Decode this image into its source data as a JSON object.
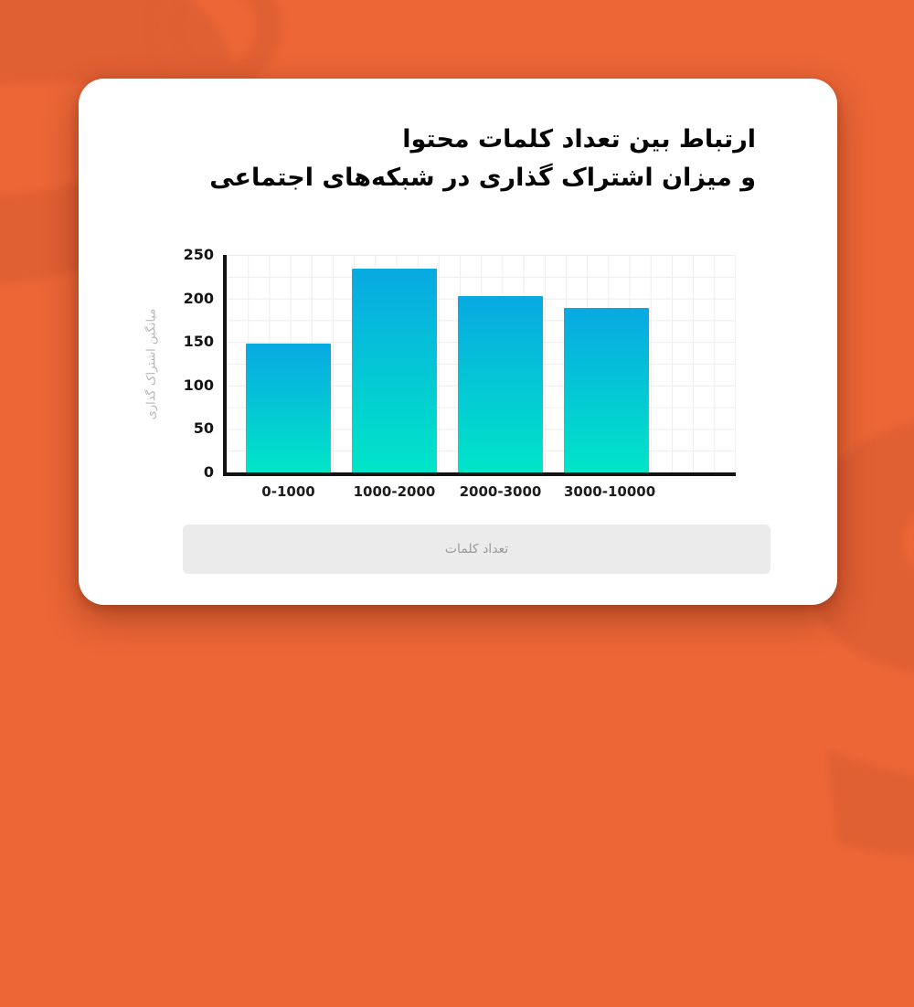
{
  "watermark_letter": "S",
  "colors": {
    "background": "#ec6636",
    "decor": "#e05f33",
    "card": "#ffffff",
    "axis": "#131313",
    "footer_bg": "#ebebeb",
    "bar_gradient_top": "#08a9e2",
    "bar_gradient_bottom": "#00e5c8"
  },
  "title": {
    "line1": "ارتباط بین تعداد کلمات محتوا",
    "line2": "و میزان اشتراک گذاری در شبکه‌های اجتماعی"
  },
  "chart_data": {
    "type": "bar",
    "title": "ارتباط بین تعداد کلمات محتوا و میزان اشتراک گذاری در شبکه‌های اجتماعی",
    "categories": [
      "0-1000",
      "1000-2000",
      "2000-3000",
      "3000-10000"
    ],
    "values": [
      148,
      234,
      203,
      189
    ],
    "xlabel": "تعداد کلمات",
    "ylabel": "میانگین اشتراک گذاری",
    "ylim": [
      0,
      250
    ],
    "yticks": [
      0,
      50,
      100,
      150,
      200,
      250
    ],
    "grid": true,
    "legend_position": "none",
    "bar_gradient": [
      "#08a9e2",
      "#00e5c8"
    ]
  },
  "footer": {
    "label": "تعداد کلمات"
  }
}
